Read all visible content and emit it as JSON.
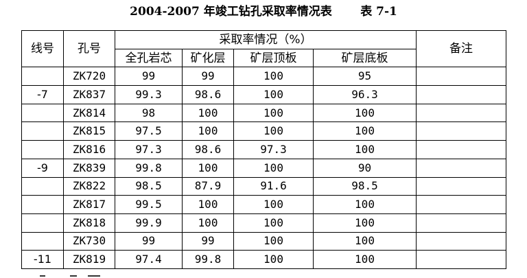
{
  "title": "2004-2007 年竣工钻孔采取率情况表",
  "table_no": "表 7-1",
  "headers": {
    "line": "线号",
    "hole": "孔号",
    "rate_group": "采取率情况（%）",
    "full_core": "全孔岩芯",
    "ore_layer": "矿化层",
    "ore_top": "矿层顶板",
    "ore_bottom": "矿层底板",
    "remark": "备注"
  },
  "rows": [
    {
      "line": "",
      "hole": "ZK720",
      "full_core": "99",
      "ore_layer": "99",
      "ore_top": "100",
      "ore_bottom": "95",
      "remark": ""
    },
    {
      "line": "-7",
      "hole": "ZK837",
      "full_core": "99.3",
      "ore_layer": "98.6",
      "ore_top": "100",
      "ore_bottom": "96.3",
      "remark": ""
    },
    {
      "line": "",
      "hole": "ZK814",
      "full_core": "98",
      "ore_layer": "100",
      "ore_top": "100",
      "ore_bottom": "100",
      "remark": ""
    },
    {
      "line": "",
      "hole": "ZK815",
      "full_core": "97.5",
      "ore_layer": "100",
      "ore_top": "100",
      "ore_bottom": "100",
      "remark": ""
    },
    {
      "line": "",
      "hole": "ZK816",
      "full_core": "97.3",
      "ore_layer": "98.6",
      "ore_top": "97.3",
      "ore_bottom": "100",
      "remark": ""
    },
    {
      "line": "-9",
      "hole": "ZK839",
      "full_core": "99.8",
      "ore_layer": "100",
      "ore_top": "100",
      "ore_bottom": "90",
      "remark": ""
    },
    {
      "line": "",
      "hole": "ZK822",
      "full_core": "98.5",
      "ore_layer": "87.9",
      "ore_top": "91.6",
      "ore_bottom": "98.5",
      "remark": ""
    },
    {
      "line": "",
      "hole": "ZK817",
      "full_core": "99.5",
      "ore_layer": "100",
      "ore_top": "100",
      "ore_bottom": "100",
      "remark": ""
    },
    {
      "line": "",
      "hole": "ZK818",
      "full_core": "99.9",
      "ore_layer": "100",
      "ore_top": "100",
      "ore_bottom": "100",
      "remark": ""
    },
    {
      "line": "",
      "hole": "ZK730",
      "full_core": "99",
      "ore_layer": "99",
      "ore_top": "100",
      "ore_bottom": "100",
      "remark": ""
    },
    {
      "line": "-11",
      "hole": "ZK819",
      "full_core": "97.4",
      "ore_layer": "99.8",
      "ore_top": "100",
      "ore_bottom": "100",
      "remark": ""
    }
  ]
}
